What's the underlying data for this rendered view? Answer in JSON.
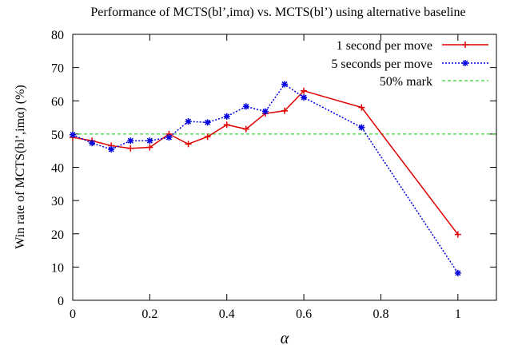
{
  "chart_data": {
    "type": "line",
    "title": "Performance of MCTS(bl’,imα) vs. MCTS(bl’) using alternative baseline",
    "xlabel": "α",
    "ylabel": "Win rate of MCTS(bl’,imα) (%)",
    "xlim": [
      0,
      1.1
    ],
    "ylim": [
      0,
      80
    ],
    "x_ticks": [
      0,
      0.2,
      0.4,
      0.6,
      0.8,
      1
    ],
    "x_tick_labels": [
      "0",
      "0.2",
      "0.4",
      "0.6",
      "0.8",
      "1"
    ],
    "y_ticks": [
      0,
      10,
      20,
      30,
      40,
      50,
      60,
      70,
      80
    ],
    "y_tick_labels": [
      "0",
      "10",
      "20",
      "30",
      "40",
      "50",
      "60",
      "70",
      "80"
    ],
    "grid": false,
    "legend_position": "top-right",
    "series": [
      {
        "name": "1 second per move",
        "color": "#e00000",
        "style": "solid",
        "marker": "plus",
        "x": [
          0,
          0.05,
          0.1,
          0.15,
          0.2,
          0.25,
          0.3,
          0.35,
          0.4,
          0.45,
          0.5,
          0.55,
          0.6,
          0.75,
          1
        ],
        "y": [
          49,
          48,
          46.5,
          45.7,
          46,
          50,
          47,
          49.2,
          52.8,
          51.5,
          56.2,
          57,
          63,
          58,
          19.8
        ]
      },
      {
        "name": "5 seconds per move",
        "color": "#0000e0",
        "style": "dotted",
        "marker": "star",
        "x": [
          0,
          0.05,
          0.1,
          0.15,
          0.2,
          0.25,
          0.3,
          0.35,
          0.4,
          0.45,
          0.5,
          0.55,
          0.6,
          0.75,
          1
        ],
        "y": [
          49.8,
          47.3,
          45.4,
          48,
          48,
          49,
          53.8,
          53.5,
          55.3,
          58.3,
          56.8,
          65,
          61,
          52,
          8.2
        ]
      },
      {
        "name": "50% mark",
        "color": "#00cc00",
        "style": "dashed",
        "marker": "none",
        "x": [
          0,
          1.1
        ],
        "y": [
          50,
          50
        ]
      }
    ]
  }
}
